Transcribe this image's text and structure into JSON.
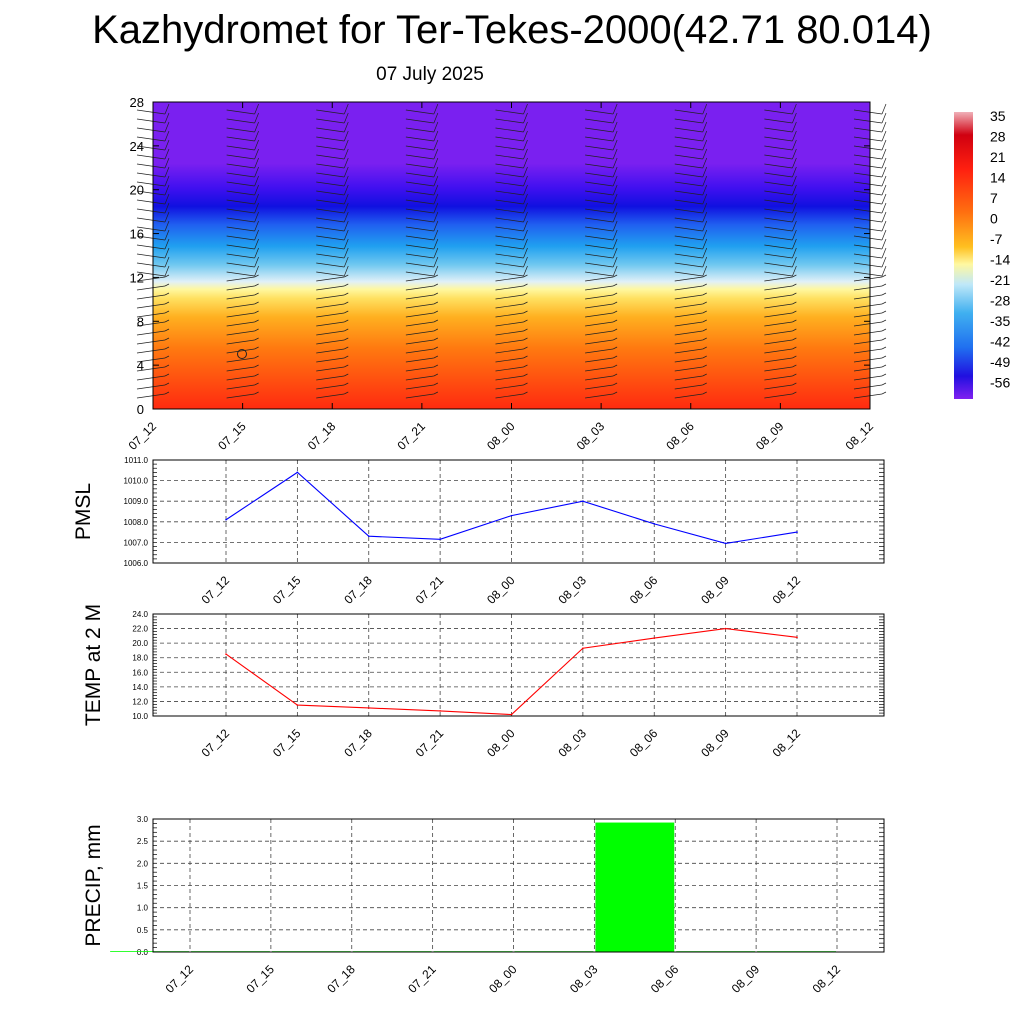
{
  "title": "Kazhydromet for Ter-Tekes-2000(42.71 80.014)",
  "subtitle": "07 July 2025",
  "colorbar": {
    "labels": [
      "35",
      "28",
      "21",
      "14",
      "7",
      "0",
      "-7",
      "-14",
      "-21",
      "-28",
      "-35",
      "-42",
      "-49",
      "-56"
    ]
  },
  "chart_data": [
    {
      "type": "heatmap",
      "name": "temperature-height-section",
      "x_categories": [
        "07_12",
        "07_15",
        "07_18",
        "07_21",
        "08_00",
        "08_03",
        "08_06",
        "08_09",
        "08_12"
      ],
      "y_ticks": [
        0,
        4,
        8,
        12,
        16,
        20,
        24,
        28
      ],
      "ylim": [
        0,
        28
      ],
      "colorbar_range": [
        -60,
        38
      ],
      "notes_visible": "wind barbs overlay at each time column"
    },
    {
      "type": "line",
      "ylabel": "PMSL",
      "categories": [
        "07_12",
        "07_15",
        "07_18",
        "07_21",
        "08_00",
        "08_03",
        "08_06",
        "08_09",
        "08_12"
      ],
      "values": [
        1008.1,
        1010.4,
        1007.3,
        1007.15,
        1008.3,
        1009.0,
        1007.9,
        1006.95,
        1007.5
      ],
      "ylim": [
        1006.0,
        1011.0
      ],
      "y_ticks": [
        "1006.0",
        "1007.0",
        "1008.0",
        "1009.0",
        "1010.0",
        "1011.0"
      ],
      "color": "#0000ff",
      "grid": true
    },
    {
      "type": "line",
      "ylabel": "TEMP at 2 M",
      "categories": [
        "07_12",
        "07_15",
        "07_18",
        "07_21",
        "08_00",
        "08_03",
        "08_06",
        "08_09",
        "08_12"
      ],
      "values": [
        18.5,
        11.5,
        11.1,
        10.7,
        10.2,
        19.3,
        20.7,
        22.0,
        20.8
      ],
      "ylim": [
        10.0,
        24.0
      ],
      "y_ticks": [
        "10.0",
        "12.0",
        "14.0",
        "16.0",
        "18.0",
        "20.0",
        "22.0",
        "24.0"
      ],
      "color": "#ff0000",
      "grid": true
    },
    {
      "type": "bar",
      "ylabel": "PRECIP, mm",
      "categories": [
        "07_12",
        "07_15",
        "07_18",
        "07_21",
        "08_00",
        "08_03",
        "08_06",
        "08_09",
        "08_12"
      ],
      "values": [
        0.0,
        0.01,
        0.0,
        0.0,
        0.0,
        0.01,
        2.92,
        0.0,
        0.0
      ],
      "ylim": [
        0.0,
        3.0
      ],
      "y_ticks": [
        "0.0",
        "0.5",
        "1.0",
        "1.5",
        "2.0",
        "2.5",
        "3.0"
      ],
      "color": "#00ff00",
      "grid": true
    }
  ]
}
